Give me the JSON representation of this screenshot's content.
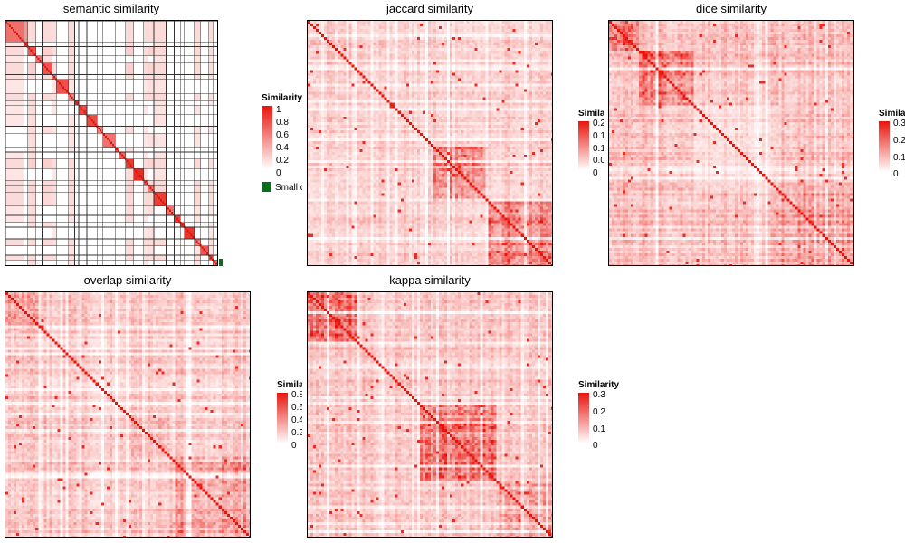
{
  "chart_data": [
    {
      "type": "heatmap",
      "title": "semantic similarity",
      "legend": {
        "title": "Similarity",
        "ticks": [
          "1",
          "0.8",
          "0.6",
          "0.4",
          "0.2",
          "0"
        ],
        "extra_label": "Small clusters",
        "extra_color": "#0b6e1e"
      },
      "scale": [
        0,
        1
      ],
      "colors": {
        "low": "#ffffff",
        "high": "#e8140c"
      },
      "block_sizes": [
        9,
        2,
        4,
        3,
        5,
        2,
        6,
        3,
        2,
        4,
        5,
        3,
        6,
        2,
        3,
        4,
        5,
        2,
        3,
        6,
        4,
        3,
        2,
        5,
        3,
        4,
        2,
        3
      ],
      "grid": "cluster borders"
    },
    {
      "type": "heatmap",
      "title": "jaccard similarity",
      "legend": {
        "title": "Similarity",
        "ticks": [
          "0.2",
          "0.1",
          "0.1",
          "0.0",
          "0"
        ]
      },
      "scale": [
        0,
        0.25
      ],
      "colors": {
        "low": "#ffffff",
        "high": "#e8140c"
      },
      "blocks": [
        38,
        54,
        40,
        48
      ]
    },
    {
      "type": "heatmap",
      "title": "dice similarity",
      "legend": {
        "title": "Similarity",
        "ticks": [
          "0.3",
          "0.2",
          "0.1",
          "0"
        ]
      },
      "scale": [
        0,
        0.35
      ],
      "colors": {
        "low": "#ffffff",
        "high": "#e8140c"
      },
      "blocks": [
        22,
        40,
        62,
        56
      ]
    },
    {
      "type": "heatmap",
      "title": "overlap similarity",
      "legend": {
        "title": "Similarity",
        "ticks": [
          "0.8",
          "0.6",
          "0.4",
          "0.2",
          "0"
        ]
      },
      "scale": [
        0,
        0.9
      ],
      "colors": {
        "low": "#ffffff",
        "high": "#e8140c"
      },
      "blocks": [
        28,
        62,
        30,
        60
      ]
    },
    {
      "type": "heatmap",
      "title": "kappa similarity",
      "legend": {
        "title": "Similarity",
        "ticks": [
          "0.3",
          "0.2",
          "0.1",
          "0"
        ]
      },
      "scale": [
        0,
        0.35
      ],
      "colors": {
        "low": "#ffffff",
        "high": "#e8140c"
      },
      "blocks": [
        40,
        50,
        64,
        46
      ]
    }
  ]
}
